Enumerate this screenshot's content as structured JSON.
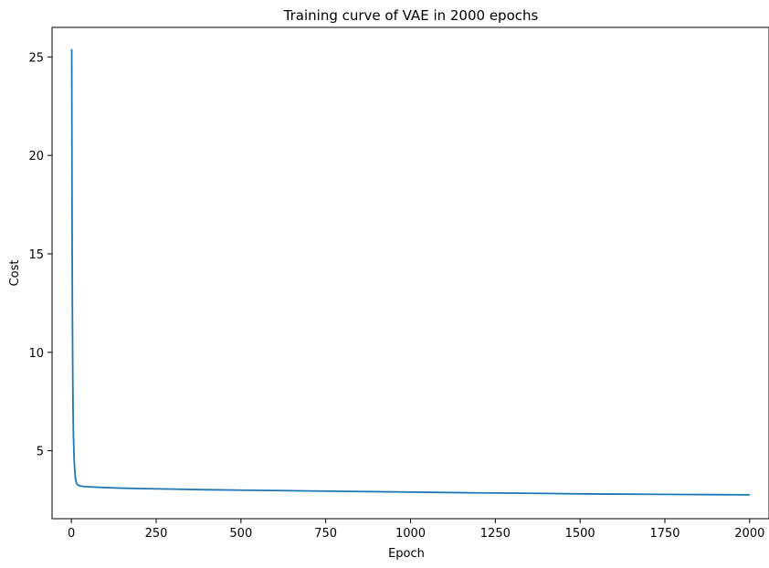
{
  "chart_data": {
    "type": "line",
    "title": "Training curve of VAE in 2000 epochs",
    "xlabel": "Epoch",
    "ylabel": "Cost",
    "xlim": [
      -57,
      2057
    ],
    "ylim": [
      1.55,
      26.5
    ],
    "xticks": [
      0,
      250,
      500,
      750,
      1000,
      1250,
      1500,
      1750,
      2000
    ],
    "yticks": [
      5,
      10,
      15,
      20,
      25
    ],
    "grid": false,
    "legend": "none",
    "series": [
      {
        "color": "#1f77b4",
        "x": [
          1,
          2,
          3,
          4,
          5,
          6,
          8,
          10,
          12,
          15,
          20,
          25,
          30,
          40,
          50,
          75,
          100,
          150,
          200,
          300,
          400,
          500,
          600,
          700,
          800,
          900,
          1000,
          1100,
          1200,
          1300,
          1400,
          1500,
          1600,
          1700,
          1800,
          1900,
          2000
        ],
        "y": [
          25.4,
          17.0,
          12.0,
          8.9,
          7.0,
          5.8,
          4.6,
          4.0,
          3.6,
          3.35,
          3.25,
          3.22,
          3.2,
          3.18,
          3.17,
          3.15,
          3.13,
          3.1,
          3.08,
          3.05,
          3.02,
          3.0,
          2.98,
          2.96,
          2.94,
          2.92,
          2.9,
          2.88,
          2.86,
          2.85,
          2.83,
          2.81,
          2.8,
          2.79,
          2.78,
          2.77,
          2.76
        ]
      }
    ]
  }
}
